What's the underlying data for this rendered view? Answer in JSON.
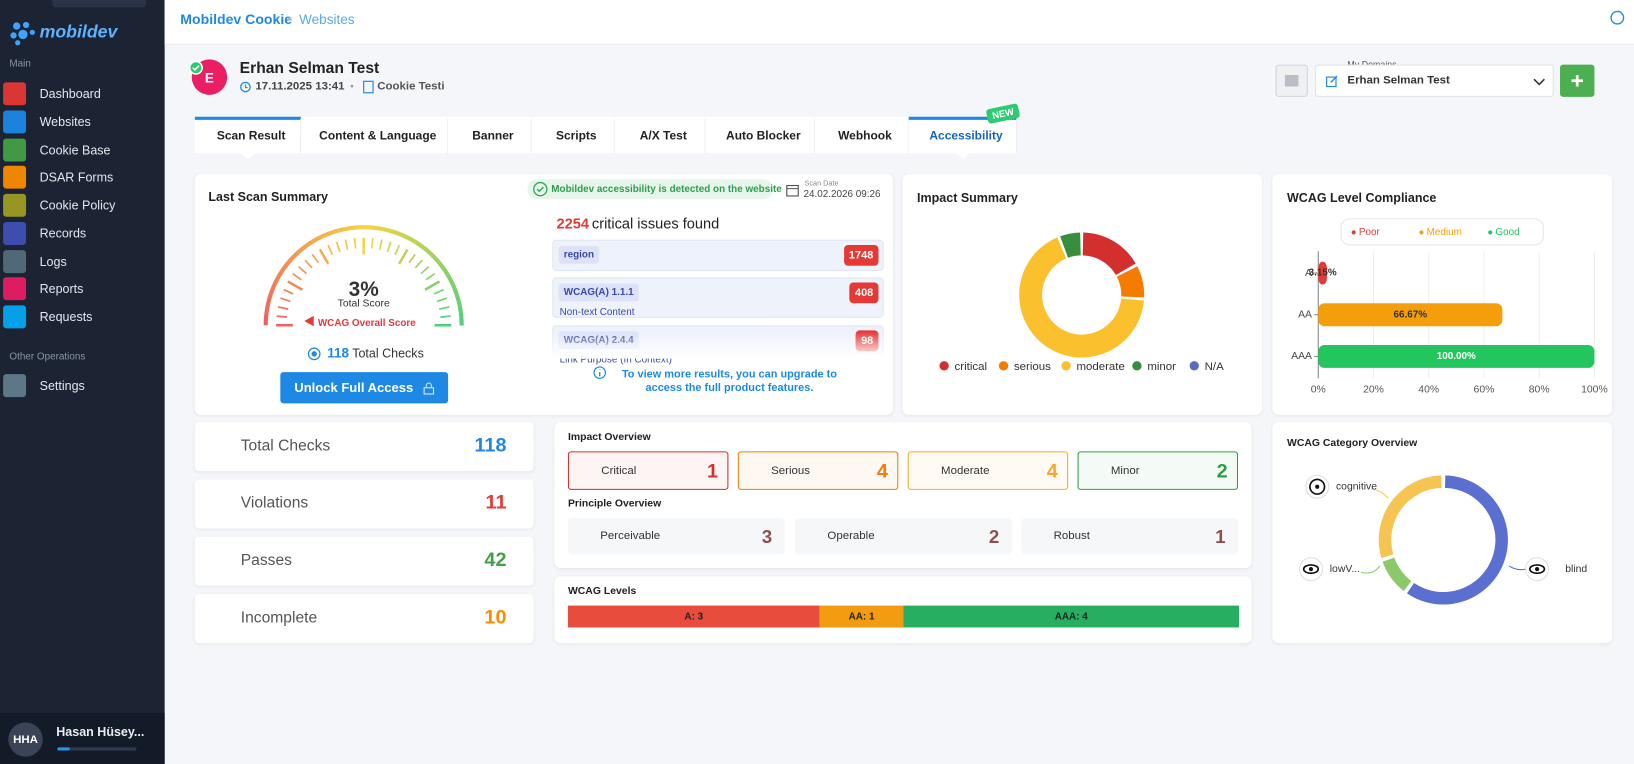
{
  "sidebar": {
    "logo": "mobildev",
    "sections": [
      {
        "title": "Main",
        "items": [
          {
            "label": "Dashboard",
            "color": "#e53935"
          },
          {
            "label": "Websites",
            "color": "#1e88e5"
          },
          {
            "label": "Cookie Base",
            "color": "#43a047"
          },
          {
            "label": "DSAR Forms",
            "color": "#fb8c00"
          },
          {
            "label": "Cookie Policy",
            "color": "#9e9d24"
          },
          {
            "label": "Records",
            "color": "#3f51b5"
          },
          {
            "label": "Logs",
            "color": "#546e7a"
          },
          {
            "label": "Reports",
            "color": "#e91e63"
          },
          {
            "label": "Requests",
            "color": "#03a9f4"
          }
        ]
      },
      {
        "title": "Other Operations",
        "items": [
          {
            "label": "Settings",
            "color": "#607d8b"
          }
        ]
      }
    ],
    "user": {
      "initials": "HHA",
      "name": "Hasan Hüsey..."
    }
  },
  "topbar": {
    "app": "Mobildev Cookie",
    "separator": "•",
    "page": "Websites"
  },
  "profile": {
    "initial": "E",
    "name": "Erhan Selman Test",
    "date": "17.11.2025 13:41",
    "separator": "•",
    "site": "Cookie Testi"
  },
  "domains": {
    "label": "My Domains",
    "selected": "Erhan Selman Test"
  },
  "tabs": {
    "items": [
      "Scan Result",
      "Content & Language",
      "Banner",
      "Scripts",
      "A/X Test",
      "Auto Blocker",
      "Webhook",
      "Accessibility"
    ],
    "active": 0,
    "highlighted": 7,
    "badge": "NEW"
  },
  "last_scan": {
    "title": "Last Scan Summary",
    "detected": "Mobildev accessibility is detected on the website",
    "scan_date_label": "Scan Date",
    "scan_date": "24.02.2026 09:26",
    "score": "3%",
    "score_label": "Total Score",
    "overall_label": "WCAG Overall Score",
    "total_checks": 118,
    "total_checks_label": "Total Checks",
    "critical_count": 2254,
    "critical_text": "critical issues found",
    "issues": [
      {
        "tag": "region",
        "count": 1748
      },
      {
        "tag": "WCAG(A) 1.1.1",
        "description": "Non-text Content",
        "count": 408
      },
      {
        "tag": "WCAG(A) 2.4.4",
        "description": "Link Purpose (In Context)",
        "count": 98
      }
    ],
    "button": "Unlock Full Access",
    "upgrade_note": "To view more results, you can upgrade to access the full product features."
  },
  "stats": [
    {
      "label": "Total Checks",
      "value": 118,
      "color": "#1e88e5"
    },
    {
      "label": "Violations",
      "value": 11,
      "color": "#e53935"
    },
    {
      "label": "Passes",
      "value": 42,
      "color": "#43a047"
    },
    {
      "label": "Incomplete",
      "value": 10,
      "color": "#fb8c00"
    }
  ],
  "impact_summary": {
    "type": "donut",
    "title": "Impact Summary",
    "categories": [
      "critical",
      "serious",
      "moderate",
      "minor",
      "N/A"
    ],
    "values": [
      17,
      9,
      68,
      6,
      0
    ],
    "colors": [
      "#d32f2f",
      "#f57c00",
      "#fbc02d",
      "#388e3c",
      "#5c6bc0"
    ]
  },
  "wcag_compliance": {
    "type": "bar",
    "orientation": "horizontal",
    "title": "WCAG Level Compliance",
    "legend": [
      {
        "name": "Poor",
        "color": "#e53935"
      },
      {
        "name": "Medium",
        "color": "#f59e0b"
      },
      {
        "name": "Good",
        "color": "#22c55e"
      }
    ],
    "categories": [
      "A",
      "AA",
      "AAA"
    ],
    "values": [
      3.15,
      66.67,
      100
    ],
    "value_labels": [
      "3.15%",
      "66.67%",
      "100.00%"
    ],
    "colors": [
      "#e53935",
      "#f59e0b",
      "#22c55e"
    ],
    "xlim": [
      0,
      100
    ],
    "xticks": [
      {
        "value": 0,
        "label": "0%"
      },
      {
        "value": 20,
        "label": "20%"
      },
      {
        "value": 40,
        "label": "40%"
      },
      {
        "value": 60,
        "label": "60%"
      },
      {
        "value": 80,
        "label": "80%"
      },
      {
        "value": 100,
        "label": "100%"
      }
    ],
    "grid": true
  },
  "impact_overview": {
    "title": "Impact Overview",
    "items": [
      {
        "label": "Critical",
        "value": 1,
        "color": "#d32f2f"
      },
      {
        "label": "Serious",
        "value": 4,
        "color": "#f57c00"
      },
      {
        "label": "Moderate",
        "value": 4,
        "color": "#f9a825"
      },
      {
        "label": "Minor",
        "value": 2,
        "color": "#2e9e44"
      }
    ]
  },
  "principle_overview": {
    "title": "Principle Overview",
    "items": [
      {
        "label": "Perceivable",
        "value": 3
      },
      {
        "label": "Operable",
        "value": 2
      },
      {
        "label": "Robust",
        "value": 1
      }
    ],
    "color": "#8d4f4f"
  },
  "wcag_levels": {
    "type": "stacked_bar",
    "title": "WCAG Levels",
    "values": [
      3,
      1,
      4
    ],
    "value_labels": [
      "A: 3",
      "AA: 1",
      "AAA: 4"
    ],
    "colors": [
      "#e74c3c",
      "#f39c12",
      "#27ae60"
    ]
  },
  "wcag_categories": {
    "type": "donut",
    "title": "WCAG Category Overview",
    "categories": [
      "blind",
      "lowV...",
      "cognitive"
    ],
    "values": [
      60,
      10,
      30
    ],
    "colors": [
      "#5b6fd0",
      "#8bc96a",
      "#f6c453"
    ]
  }
}
